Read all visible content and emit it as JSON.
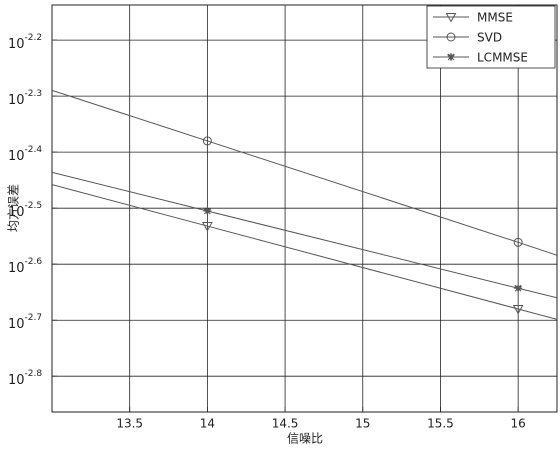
{
  "chart_data": {
    "type": "line",
    "x_label": "信噪比",
    "y_label": "均方误差",
    "x": [
      13,
      14,
      16,
      16.25
    ],
    "marker_x": [
      14,
      16
    ],
    "series": [
      {
        "name": "MMSE",
        "color": "#555555",
        "marker": "triangle-down",
        "values": [
          0.003483,
          0.002938,
          0.002089,
          0.002002
        ]
      },
      {
        "name": "SVD",
        "color": "#555555",
        "marker": "circle",
        "values": [
          0.005134,
          0.004169,
          0.002748,
          0.002606
        ]
      },
      {
        "name": "LCMMSE",
        "color": "#555555",
        "marker": "star",
        "values": [
          0.003664,
          0.003126,
          0.002275,
          0.002188
        ]
      }
    ],
    "xlim": [
      13,
      16.25
    ],
    "xticks": [
      13.5,
      14,
      14.5,
      15,
      15.5,
      16
    ],
    "ylim": [
      0.001368,
      0.00729
    ],
    "yscale": "log",
    "yticks": [
      {
        "value": 0.00631,
        "label": {
          "base": "10",
          "exponent": "-2.2"
        }
      },
      {
        "value": 0.005012,
        "label": {
          "base": "10",
          "exponent": "-2.3"
        }
      },
      {
        "value": 0.003981,
        "label": {
          "base": "10",
          "exponent": "-2.4"
        }
      },
      {
        "value": 0.003162,
        "label": {
          "base": "10",
          "exponent": "-2.5"
        }
      },
      {
        "value": 0.002512,
        "label": {
          "base": "10",
          "exponent": "-2.6"
        }
      },
      {
        "value": 0.001995,
        "label": {
          "base": "10",
          "exponent": "-2.7"
        }
      },
      {
        "value": 0.001585,
        "label": {
          "base": "10",
          "exponent": "-2.8"
        }
      }
    ],
    "grid": true,
    "legend": "top-right"
  }
}
